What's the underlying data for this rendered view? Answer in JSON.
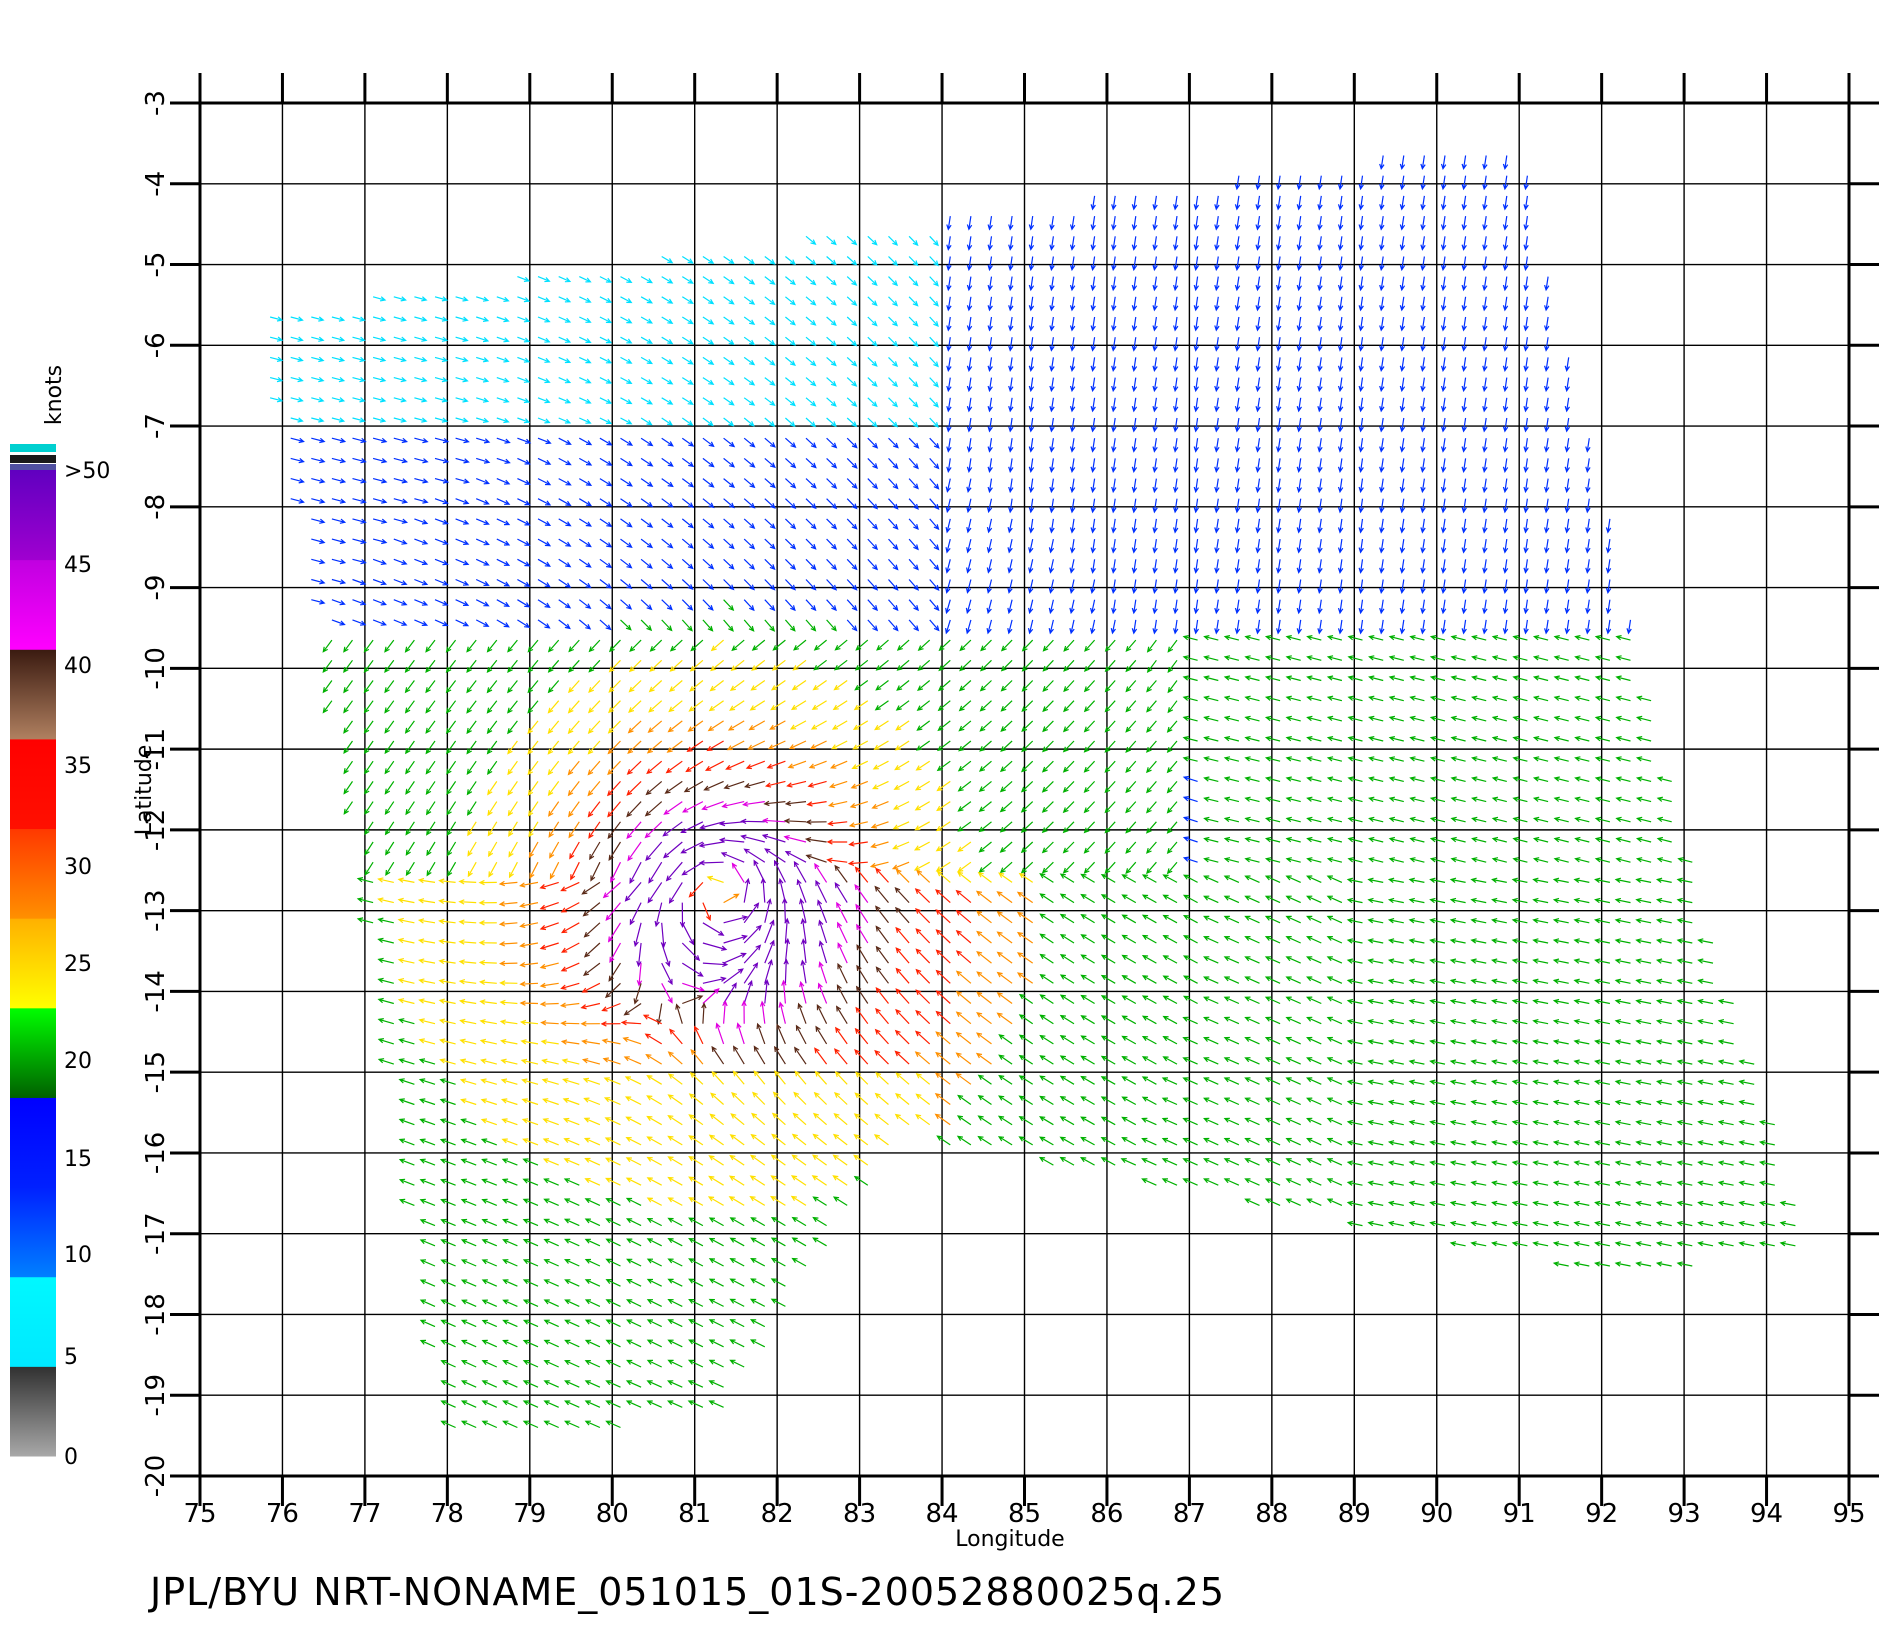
{
  "chart_data": {
    "type": "wind-vector",
    "xlabel": "Longitude",
    "ylabel": "Latitude",
    "xlim": [
      75,
      95
    ],
    "ylim": [
      -20,
      -3
    ],
    "x_ticks": [
      "75",
      "76",
      "77",
      "78",
      "79",
      "80",
      "81",
      "82",
      "83",
      "84",
      "85",
      "86",
      "87",
      "88",
      "89",
      "90",
      "91",
      "92",
      "93",
      "94",
      "95"
    ],
    "y_ticks": [
      "-3",
      "-4",
      "-5",
      "-6",
      "-7",
      "-8",
      "-9",
      "-10",
      "-11",
      "-12",
      "-13",
      "-14",
      "-15",
      "-16",
      "-17",
      "-18",
      "-19",
      "-20"
    ],
    "grid": true,
    "colorbar": {
      "title": "knots",
      "labels": [
        "0",
        "5",
        "10",
        "15",
        "20",
        "25",
        "30",
        "35",
        "40",
        "45",
        ">50"
      ],
      "colors": [
        "#9a9a9a",
        "#3a3a3a",
        "#00f2ff",
        "#0096ff",
        "#0020ff",
        "#008800",
        "#00ff00",
        "#ffff00",
        "#ffb000",
        "#ff6000",
        "#ff1000",
        "#b07050",
        "#3a1a10",
        "#ff00ff",
        "#a000d0",
        "#5000b0"
      ]
    },
    "speed_bands_knots": [
      0,
      5,
      10,
      15,
      20,
      25,
      30,
      35,
      40,
      45,
      50
    ],
    "storm_center": {
      "lon": 81.3,
      "lat": -12.8
    },
    "swath_approx": [
      [
        75.6,
        -5.6
      ],
      [
        91.0,
        -3.4
      ],
      [
        93.0,
        -12.0
      ],
      [
        94.6,
        -17.3
      ],
      [
        92.0,
        -17.5
      ],
      [
        83.5,
        -15.8
      ],
      [
        81.3,
        -19.3
      ],
      [
        78.0,
        -19.6
      ],
      [
        77.0,
        -12.5
      ],
      [
        75.6,
        -5.6
      ]
    ]
  },
  "footer": {
    "caption": "JPL/BYU  NRT-NONAME_051015_01S-20052880025q.25"
  }
}
